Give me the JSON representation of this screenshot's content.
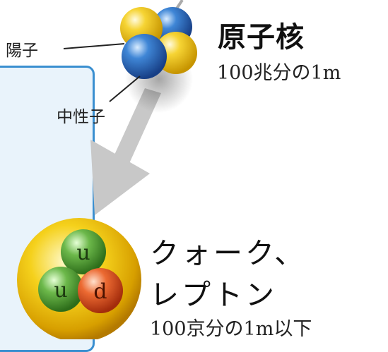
{
  "nucleus": {
    "title": "原子核",
    "size": "100兆分の1m",
    "proton_label": "陽子",
    "neutron_label": "中性子"
  },
  "quark": {
    "title_line1": "クォーク、",
    "title_line2": "レプトン",
    "size": "100京分の1m以下",
    "quark_up_1": "u",
    "quark_up_2": "u",
    "quark_down": "d"
  },
  "colors": {
    "panel_fill": "#e9f3fb",
    "panel_border": "#3a8fd0",
    "proton": "#f3c21d",
    "neutron": "#2f6fc0",
    "quark_up": "#5aa83a",
    "quark_down": "#e2582b",
    "sphere_glow": "#f5d11c",
    "arrow": "#c8c8c8"
  }
}
